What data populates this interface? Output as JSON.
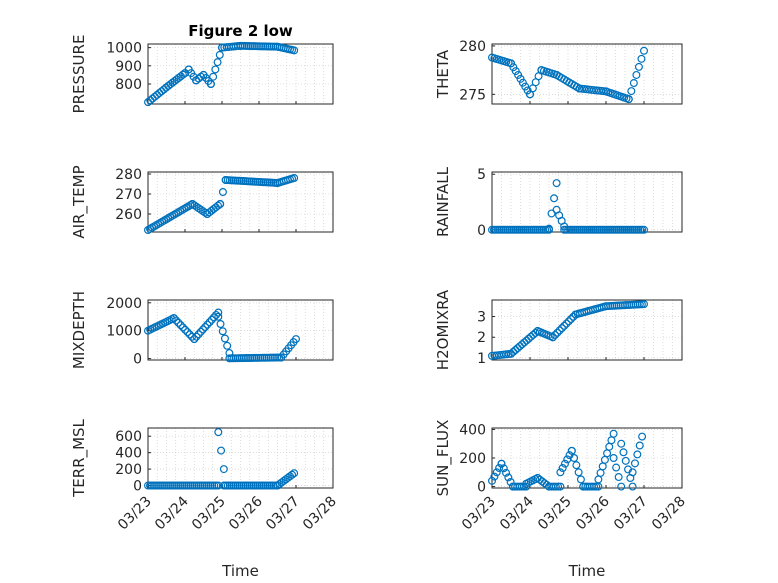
{
  "chart_data": [
    {
      "type": "scatter",
      "panel": "left-1",
      "title": "Figure 2 low",
      "ylabel": "PRESSURE",
      "yticks": [
        800,
        900,
        1000
      ],
      "ylim": [
        690,
        1020
      ],
      "xlim": [
        0,
        5
      ],
      "xticks": [
        0,
        1,
        2,
        3,
        4,
        5
      ],
      "series": [
        {
          "segments": [
            {
              "x": [
                0.0,
                0.55
              ],
              "y": [
                700,
                790
              ]
            },
            {
              "x": [
                0.55,
                1.0
              ],
              "y": [
                790,
                860
              ]
            },
            {
              "x": [
                1.0,
                1.1
              ],
              "y": [
                860,
                880
              ]
            },
            {
              "x": [
                1.1,
                1.3
              ],
              "y": [
                880,
                820
              ]
            },
            {
              "x": [
                1.3,
                1.5
              ],
              "y": [
                820,
                850
              ]
            },
            {
              "x": [
                1.5,
                1.7
              ],
              "y": [
                850,
                800
              ]
            },
            {
              "x": [
                1.7,
                2.0
              ],
              "y": [
                800,
                1000
              ]
            },
            {
              "x": [
                2.0,
                2.5
              ],
              "y": [
                1000,
                1010
              ]
            },
            {
              "x": [
                2.5,
                3.5
              ],
              "y": [
                1010,
                1005
              ]
            },
            {
              "x": [
                3.5,
                3.95
              ],
              "y": [
                1005,
                985
              ]
            }
          ],
          "n": 75
        }
      ]
    },
    {
      "type": "scatter",
      "panel": "right-1",
      "ylabel": "THETA",
      "yticks": [
        275,
        280
      ],
      "ylim": [
        274,
        280.2
      ],
      "xlim": [
        0,
        5
      ],
      "xticks": [
        0,
        1,
        2,
        3,
        4,
        5
      ],
      "series": [
        {
          "segments": [
            {
              "x": [
                0.0,
                0.5
              ],
              "y": [
                278.8,
                278.2
              ]
            },
            {
              "x": [
                0.5,
                1.0
              ],
              "y": [
                278.2,
                275.0
              ]
            },
            {
              "x": [
                1.0,
                1.3
              ],
              "y": [
                275.0,
                277.5
              ]
            },
            {
              "x": [
                1.3,
                1.7
              ],
              "y": [
                277.5,
                277.0
              ]
            },
            {
              "x": [
                1.7,
                2.3
              ],
              "y": [
                277.0,
                275.6
              ]
            },
            {
              "x": [
                2.3,
                3.0
              ],
              "y": [
                275.6,
                275.3
              ]
            },
            {
              "x": [
                3.0,
                3.6
              ],
              "y": [
                275.3,
                274.5
              ]
            },
            {
              "x": [
                3.6,
                4.0
              ],
              "y": [
                274.5,
                279.5
              ]
            }
          ],
          "n": 70
        }
      ]
    },
    {
      "type": "scatter",
      "panel": "left-2",
      "ylabel": "AIR_TEMP",
      "yticks": [
        260,
        270,
        280
      ],
      "ylim": [
        251,
        281
      ],
      "xlim": [
        0,
        5
      ],
      "xticks": [
        0,
        1,
        2,
        3,
        4,
        5
      ],
      "series": [
        {
          "segments": [
            {
              "x": [
                0.0,
                1.2
              ],
              "y": [
                252,
                265
              ]
            },
            {
              "x": [
                1.2,
                1.6
              ],
              "y": [
                265,
                260
              ]
            },
            {
              "x": [
                1.6,
                1.95
              ],
              "y": [
                260,
                265
              ]
            },
            {
              "x": [
                1.95,
                2.1
              ],
              "y": [
                265,
                277
              ]
            },
            {
              "x": [
                2.1,
                3.5
              ],
              "y": [
                277,
                275.5
              ]
            },
            {
              "x": [
                3.5,
                3.95
              ],
              "y": [
                275.5,
                278
              ]
            }
          ],
          "n": 75
        }
      ]
    },
    {
      "type": "scatter",
      "panel": "right-2",
      "ylabel": "RAINFALL",
      "yticks": [
        0,
        5
      ],
      "ylim": [
        -0.2,
        5.2
      ],
      "xlim": [
        0,
        5
      ],
      "xticks": [
        0,
        1,
        2,
        3,
        4,
        5
      ],
      "series": [
        {
          "segments": [
            {
              "x": [
                0.0,
                1.5
              ],
              "y": [
                0,
                0
              ]
            },
            {
              "x": [
                1.5,
                1.7
              ],
              "y": [
                0.1,
                4.2
              ]
            },
            {
              "x": [
                1.7,
                1.9
              ],
              "y": [
                1.8,
                0.3
              ]
            },
            {
              "x": [
                1.9,
                4.0
              ],
              "y": [
                0,
                0
              ]
            }
          ],
          "n": 80
        }
      ]
    },
    {
      "type": "scatter",
      "panel": "left-3",
      "ylabel": "MIXDEPTH",
      "yticks": [
        0,
        1000,
        2000
      ],
      "ylim": [
        -50,
        2100
      ],
      "xlim": [
        0,
        5
      ],
      "xticks": [
        0,
        1,
        2,
        3,
        4,
        5
      ],
      "series": [
        {
          "segments": [
            {
              "x": [
                0.0,
                0.7
              ],
              "y": [
                1000,
                1450
              ]
            },
            {
              "x": [
                0.7,
                1.25
              ],
              "y": [
                1450,
                700
              ]
            },
            {
              "x": [
                1.25,
                1.9
              ],
              "y": [
                700,
                1650
              ]
            },
            {
              "x": [
                1.9,
                2.2
              ],
              "y": [
                1500,
                200
              ]
            },
            {
              "x": [
                2.2,
                3.6
              ],
              "y": [
                10,
                40
              ]
            },
            {
              "x": [
                3.6,
                4.0
              ],
              "y": [
                40,
                700
              ]
            }
          ],
          "n": 75
        }
      ]
    },
    {
      "type": "scatter",
      "panel": "right-3",
      "ylabel": "H2OMIXRA",
      "yticks": [
        1,
        2,
        3
      ],
      "ylim": [
        0.9,
        3.8
      ],
      "xlim": [
        0,
        5
      ],
      "xticks": [
        0,
        1,
        2,
        3,
        4,
        5
      ],
      "series": [
        {
          "segments": [
            {
              "x": [
                0.0,
                0.5
              ],
              "y": [
                1.1,
                1.2
              ]
            },
            {
              "x": [
                0.5,
                1.2
              ],
              "y": [
                1.2,
                2.3
              ]
            },
            {
              "x": [
                1.2,
                1.6
              ],
              "y": [
                2.3,
                2.0
              ]
            },
            {
              "x": [
                1.6,
                2.2
              ],
              "y": [
                2.0,
                3.1
              ]
            },
            {
              "x": [
                2.2,
                3.0
              ],
              "y": [
                3.1,
                3.5
              ]
            },
            {
              "x": [
                3.0,
                4.0
              ],
              "y": [
                3.5,
                3.6
              ]
            }
          ],
          "n": 75
        }
      ]
    },
    {
      "type": "scatter",
      "panel": "left-4",
      "ylabel": "TERR_MSL",
      "yticks": [
        0,
        200,
        400,
        600
      ],
      "ylim": [
        -30,
        700
      ],
      "xlim": [
        0,
        5
      ],
      "xticks": [
        0,
        1,
        2,
        3,
        4,
        5
      ],
      "xticklabels": [
        "03/23",
        "03/24",
        "03/25",
        "03/26",
        "03/27",
        "03/28"
      ],
      "xlabel": "Time",
      "series": [
        {
          "segments": [
            {
              "x": [
                0.0,
                1.9
              ],
              "y": [
                0,
                0
              ]
            },
            {
              "x": [
                1.9,
                2.05
              ],
              "y": [
                650,
                200
              ]
            },
            {
              "x": [
                2.05,
                3.5
              ],
              "y": [
                0,
                0
              ]
            },
            {
              "x": [
                3.5,
                3.95
              ],
              "y": [
                0,
                150
              ]
            }
          ],
          "n": 75
        }
      ]
    },
    {
      "type": "scatter",
      "panel": "right-4",
      "ylabel": "SUN_FLUX",
      "yticks": [
        0,
        200,
        400
      ],
      "ylim": [
        -10,
        410
      ],
      "xlim": [
        0,
        5
      ],
      "xticks": [
        0,
        1,
        2,
        3,
        4,
        5
      ],
      "xticklabels": [
        "03/23",
        "03/24",
        "03/25",
        "03/26",
        "03/27",
        "03/28"
      ],
      "xlabel": "Time",
      "series": [
        {
          "segments": [
            {
              "x": [
                0.0,
                0.25
              ],
              "y": [
                40,
                160
              ]
            },
            {
              "x": [
                0.25,
                0.55
              ],
              "y": [
                160,
                0
              ]
            },
            {
              "x": [
                0.55,
                0.9
              ],
              "y": [
                0,
                0
              ]
            },
            {
              "x": [
                0.9,
                1.2
              ],
              "y": [
                20,
                60
              ]
            },
            {
              "x": [
                1.2,
                1.5
              ],
              "y": [
                60,
                0
              ]
            },
            {
              "x": [
                1.5,
                1.8
              ],
              "y": [
                0,
                0
              ]
            },
            {
              "x": [
                1.8,
                2.1
              ],
              "y": [
                100,
                250
              ]
            },
            {
              "x": [
                2.1,
                2.4
              ],
              "y": [
                250,
                0
              ]
            },
            {
              "x": [
                2.4,
                2.8
              ],
              "y": [
                0,
                0
              ]
            },
            {
              "x": [
                2.8,
                3.2
              ],
              "y": [
                50,
                370
              ]
            },
            {
              "x": [
                3.2,
                3.4
              ],
              "y": [
                200,
                0
              ]
            },
            {
              "x": [
                3.4,
                3.7
              ],
              "y": [
                300,
                0
              ]
            },
            {
              "x": [
                3.7,
                3.95
              ],
              "y": [
                100,
                350
              ]
            }
          ],
          "n": 80
        }
      ]
    }
  ]
}
